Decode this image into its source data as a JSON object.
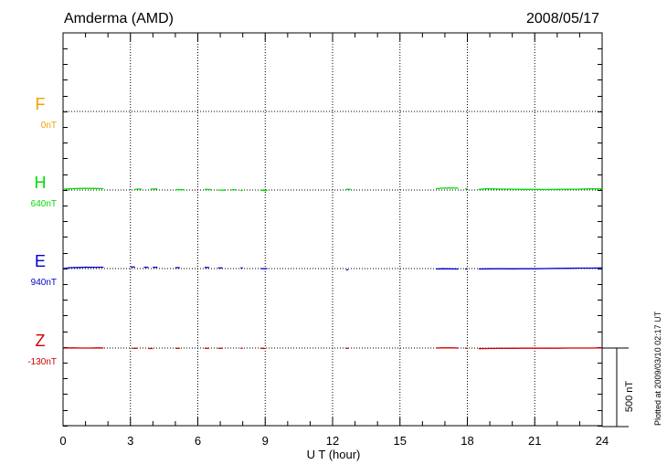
{
  "header": {
    "station": "Amderma (AMD)",
    "date": "2008/05/17"
  },
  "footer": {
    "plotted": "Plotted at 2009/03/10 02:17 UT"
  },
  "chart_data": {
    "type": "line",
    "xlabel": "U T (hour)",
    "xlim": [
      0,
      24
    ],
    "xticks": [
      "0",
      "3",
      "6",
      "9",
      "12",
      "15",
      "18",
      "21",
      "24"
    ],
    "scale_bar": {
      "label": "500 nT",
      "value_nT": 500
    },
    "grid": true,
    "series": [
      {
        "name": "F",
        "baseline": "0nT",
        "color": "#f0a000",
        "segments": []
      },
      {
        "name": "H",
        "baseline": "640nT",
        "color": "#00dd00",
        "segments": [
          [
            [
              0.0,
              5
            ],
            [
              0.3,
              8
            ],
            [
              0.7,
              10
            ],
            [
              1.0,
              11
            ],
            [
              1.4,
              10
            ],
            [
              1.8,
              9
            ]
          ],
          [
            [
              3.2,
              5
            ],
            [
              3.5,
              6
            ]
          ],
          [
            [
              3.9,
              6
            ],
            [
              4.2,
              7
            ]
          ],
          [
            [
              5.0,
              3
            ],
            [
              5.4,
              2
            ]
          ],
          [
            [
              6.3,
              4
            ],
            [
              6.6,
              3
            ]
          ],
          [
            [
              6.9,
              0
            ],
            [
              7.2,
              -1
            ]
          ],
          [
            [
              7.5,
              2
            ],
            [
              7.7,
              2
            ]
          ],
          [
            [
              7.9,
              -3
            ],
            [
              8.0,
              -3
            ]
          ],
          [
            [
              8.8,
              -1
            ],
            [
              9.0,
              -4
            ],
            [
              9.1,
              -3
            ]
          ],
          [
            [
              12.6,
              5
            ],
            [
              12.8,
              4
            ]
          ],
          [
            [
              16.6,
              8
            ],
            [
              16.9,
              12
            ],
            [
              17.2,
              13
            ],
            [
              17.6,
              12
            ]
          ],
          [
            [
              17.9,
              8
            ],
            [
              18.0,
              8
            ]
          ],
          [
            [
              18.5,
              4
            ],
            [
              18.9,
              8
            ],
            [
              19.5,
              6
            ],
            [
              20.0,
              5
            ],
            [
              20.5,
              4
            ],
            [
              21.0,
              4
            ],
            [
              21.5,
              3
            ],
            [
              22.0,
              4
            ],
            [
              22.5,
              5
            ],
            [
              23.0,
              6
            ],
            [
              23.5,
              8
            ],
            [
              24.0,
              7
            ]
          ]
        ]
      },
      {
        "name": "E",
        "baseline": "940nT",
        "color": "#0000cc",
        "segments": [
          [
            [
              0.0,
              0
            ],
            [
              0.3,
              6
            ],
            [
              0.7,
              7
            ],
            [
              1.0,
              9
            ],
            [
              1.4,
              8
            ],
            [
              1.8,
              9
            ]
          ],
          [
            [
              3.0,
              10
            ],
            [
              3.2,
              10
            ]
          ],
          [
            [
              3.6,
              8
            ],
            [
              3.8,
              8
            ]
          ],
          [
            [
              4.0,
              8
            ],
            [
              4.2,
              8
            ]
          ],
          [
            [
              5.0,
              6
            ],
            [
              5.2,
              6
            ]
          ],
          [
            [
              6.3,
              7
            ],
            [
              6.5,
              7
            ]
          ],
          [
            [
              6.9,
              4
            ],
            [
              7.1,
              4
            ]
          ],
          [
            [
              7.9,
              4
            ],
            [
              8.0,
              4
            ]
          ],
          [
            [
              8.8,
              0
            ],
            [
              9.0,
              -1
            ],
            [
              9.1,
              0
            ]
          ],
          [
            [
              12.6,
              -8
            ],
            [
              12.7,
              -8
            ]
          ],
          [
            [
              16.6,
              -3
            ],
            [
              16.9,
              -1
            ],
            [
              17.2,
              -2
            ],
            [
              17.6,
              -3
            ]
          ],
          [
            [
              17.9,
              -3
            ],
            [
              18.0,
              -3
            ]
          ],
          [
            [
              18.5,
              -3
            ],
            [
              18.9,
              -2
            ],
            [
              19.5,
              -1
            ],
            [
              20.0,
              -2
            ],
            [
              20.5,
              -1
            ],
            [
              21.0,
              -1
            ],
            [
              21.5,
              0
            ],
            [
              22.0,
              1
            ],
            [
              22.5,
              2
            ],
            [
              23.0,
              3
            ],
            [
              23.5,
              3
            ],
            [
              24.0,
              4
            ]
          ]
        ]
      },
      {
        "name": "Z",
        "baseline": "-130nT",
        "color": "#cc0000",
        "segments": [
          [
            [
              0.0,
              0
            ],
            [
              0.4,
              1
            ],
            [
              0.8,
              0
            ],
            [
              1.2,
              0
            ],
            [
              1.6,
              1
            ],
            [
              1.8,
              0
            ]
          ],
          [
            [
              3.1,
              -2
            ],
            [
              3.3,
              -2
            ]
          ],
          [
            [
              3.8,
              -3
            ],
            [
              4.0,
              -3
            ]
          ],
          [
            [
              5.0,
              -2
            ],
            [
              5.2,
              -2
            ]
          ],
          [
            [
              6.3,
              -2
            ],
            [
              6.5,
              -2
            ]
          ],
          [
            [
              6.9,
              -2
            ],
            [
              7.1,
              -2
            ]
          ],
          [
            [
              7.9,
              -1
            ],
            [
              8.0,
              -1
            ]
          ],
          [
            [
              8.8,
              -2
            ],
            [
              9.0,
              -3
            ]
          ],
          [
            [
              12.6,
              -2
            ],
            [
              12.7,
              -2
            ]
          ],
          [
            [
              16.6,
              0
            ],
            [
              16.9,
              1
            ],
            [
              17.3,
              1
            ],
            [
              17.6,
              0
            ]
          ],
          [
            [
              17.9,
              -1
            ],
            [
              18.0,
              -1
            ]
          ],
          [
            [
              18.5,
              -4
            ],
            [
              18.9,
              -3
            ],
            [
              19.5,
              -2
            ],
            [
              20.0,
              -2
            ],
            [
              20.5,
              -1
            ],
            [
              21.0,
              -1
            ],
            [
              21.5,
              -1
            ],
            [
              22.0,
              -1
            ],
            [
              22.5,
              0
            ],
            [
              23.0,
              0
            ],
            [
              23.5,
              0
            ],
            [
              24.0,
              1
            ]
          ]
        ]
      }
    ]
  }
}
